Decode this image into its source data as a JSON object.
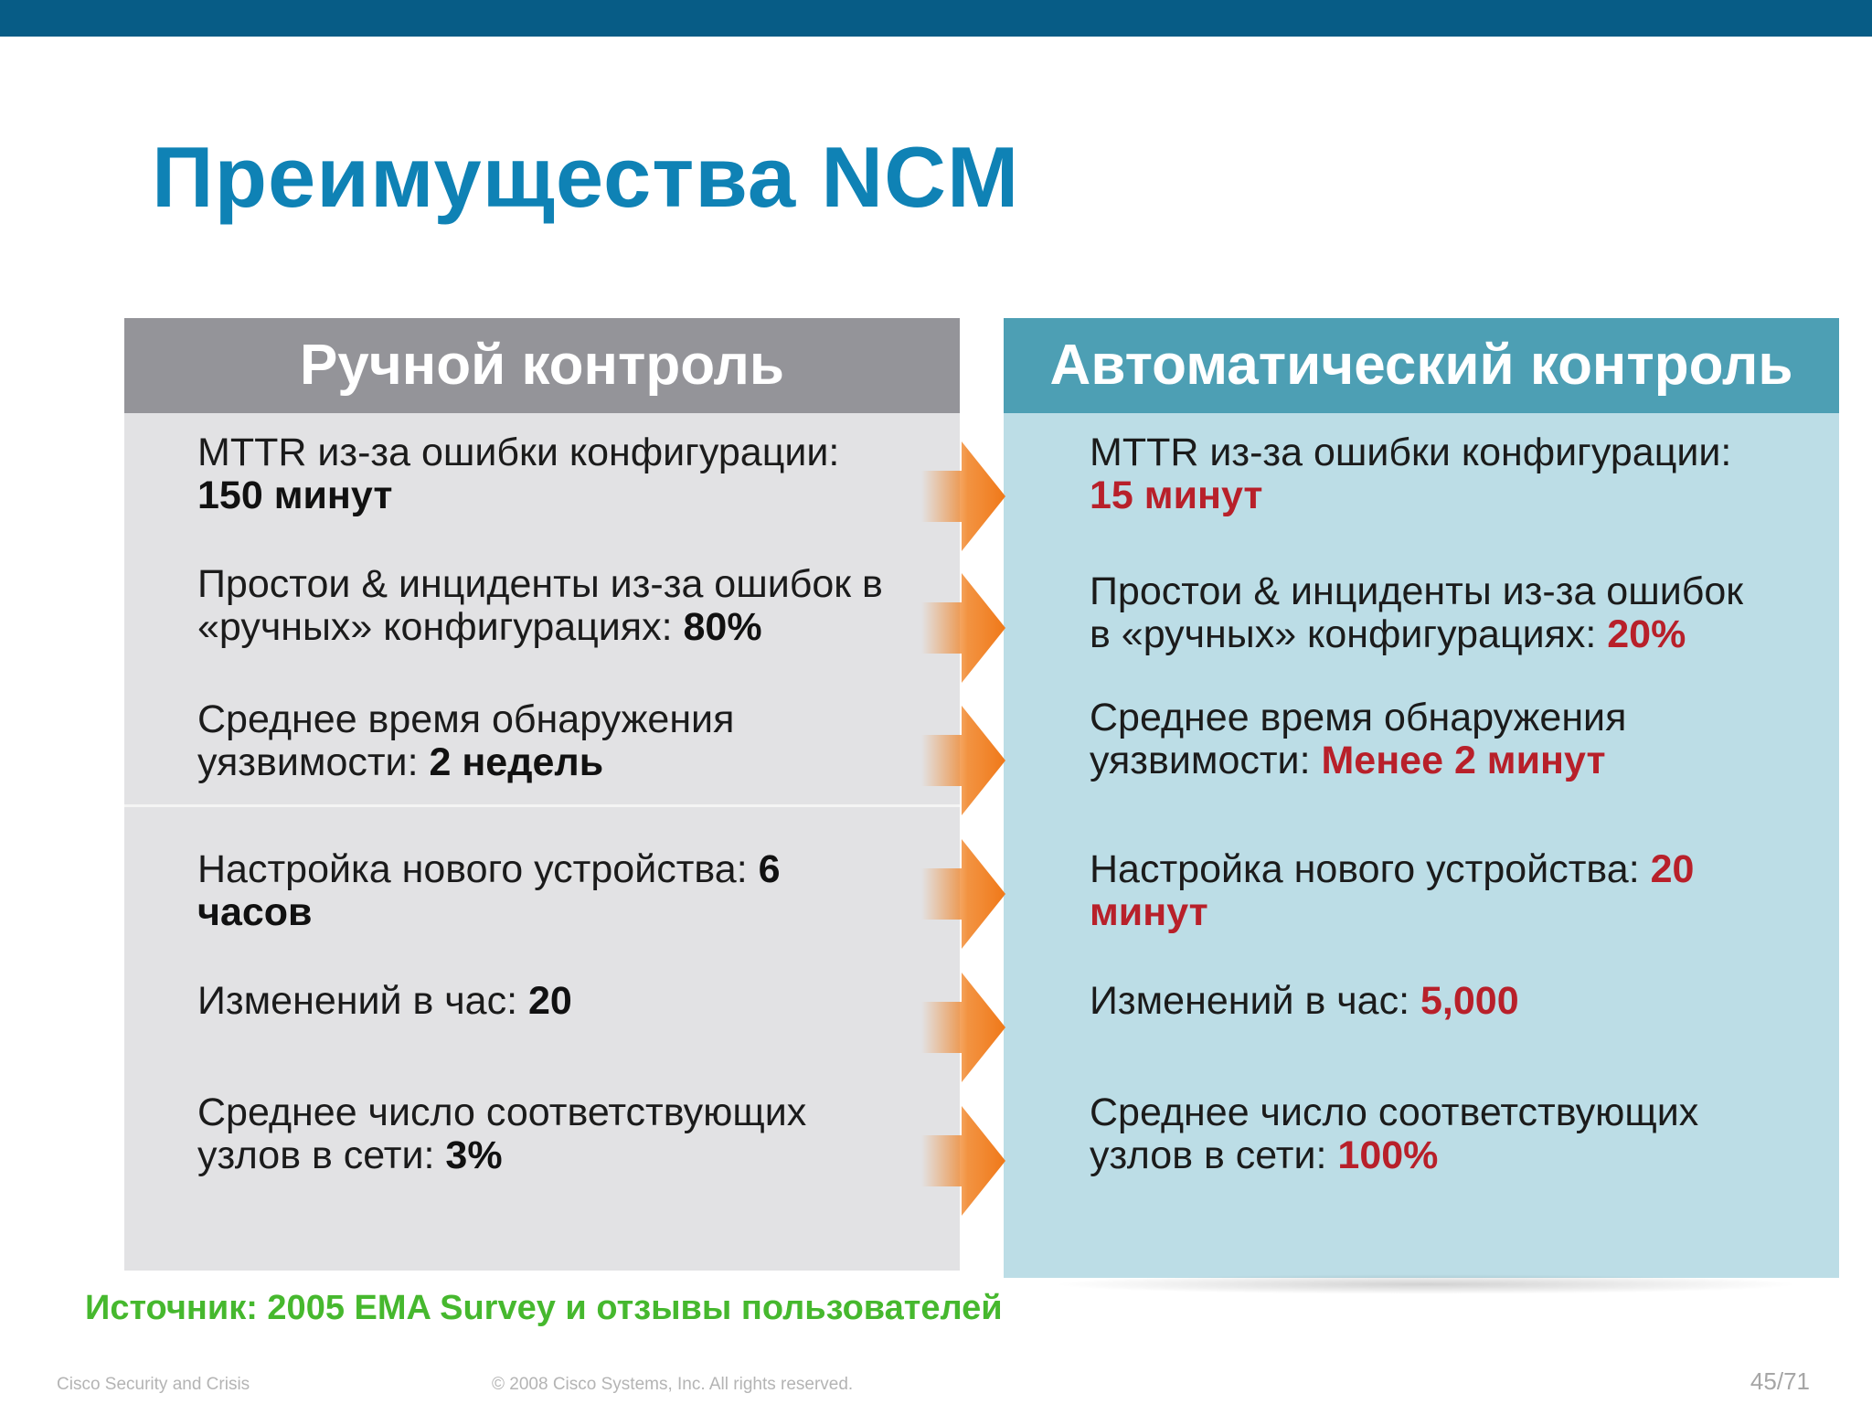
{
  "slide": {
    "title": "Преимущества NCM"
  },
  "colors": {
    "top_bar": "#075c86",
    "title": "#0f82b5",
    "left_header": "#949499",
    "left_panel": "#e2e2e4",
    "right_header": "#4d9fb4",
    "right_panel": "#bcdde6",
    "arrow": "#f08020",
    "highlight_red": "#b8202a",
    "source": "#46b82e"
  },
  "icons": [
    "arrow-right-icon"
  ],
  "left": {
    "header": "Ручной контроль",
    "items": [
      {
        "label": "MTTR из-за ошибки конфигурации:",
        "value": "150 минут"
      },
      {
        "label1": "Простои & инциденты из-за ошибок в",
        "label2": "«ручных» конфигурациях: ",
        "value": "80%"
      },
      {
        "label1": "Среднее время обнаружения",
        "label2": "уязвимости: ",
        "value": "2 недель"
      },
      {
        "label": "Настройка нового устройства: ",
        "value1": "6",
        "value2": "часов"
      },
      {
        "label": "Изменений в час: ",
        "value": "20"
      },
      {
        "label1": "Среднее число соответствующих",
        "label2": "узлов в сети: ",
        "value": "3%"
      }
    ]
  },
  "right": {
    "header": "Автоматический контроль",
    "items": [
      {
        "label": "MTTR из-за ошибки конфигурации:",
        "value": "15 минут"
      },
      {
        "label1": "Простои & инциденты из-за ошибок",
        "label2": "в «ручных» конфигурациях: ",
        "value": "20%"
      },
      {
        "label1": "Среднее время обнаружения",
        "label2": "уязвимости: ",
        "value": "Менее 2 минут"
      },
      {
        "label": "Настройка нового устройства: ",
        "value1": "20",
        "value2": "минут"
      },
      {
        "label": "Изменений в час: ",
        "value": "5,000"
      },
      {
        "label1": "Среднее число соответствующих",
        "label2": "узлов в сети: ",
        "value": "100%"
      }
    ]
  },
  "source": "Источник: 2005 EMA Survey и отзывы пользователей",
  "footer": {
    "left": "Cisco Security and Crisis",
    "center": "© 2008 Cisco Systems, Inc. All rights reserved.",
    "page": "45/71"
  }
}
